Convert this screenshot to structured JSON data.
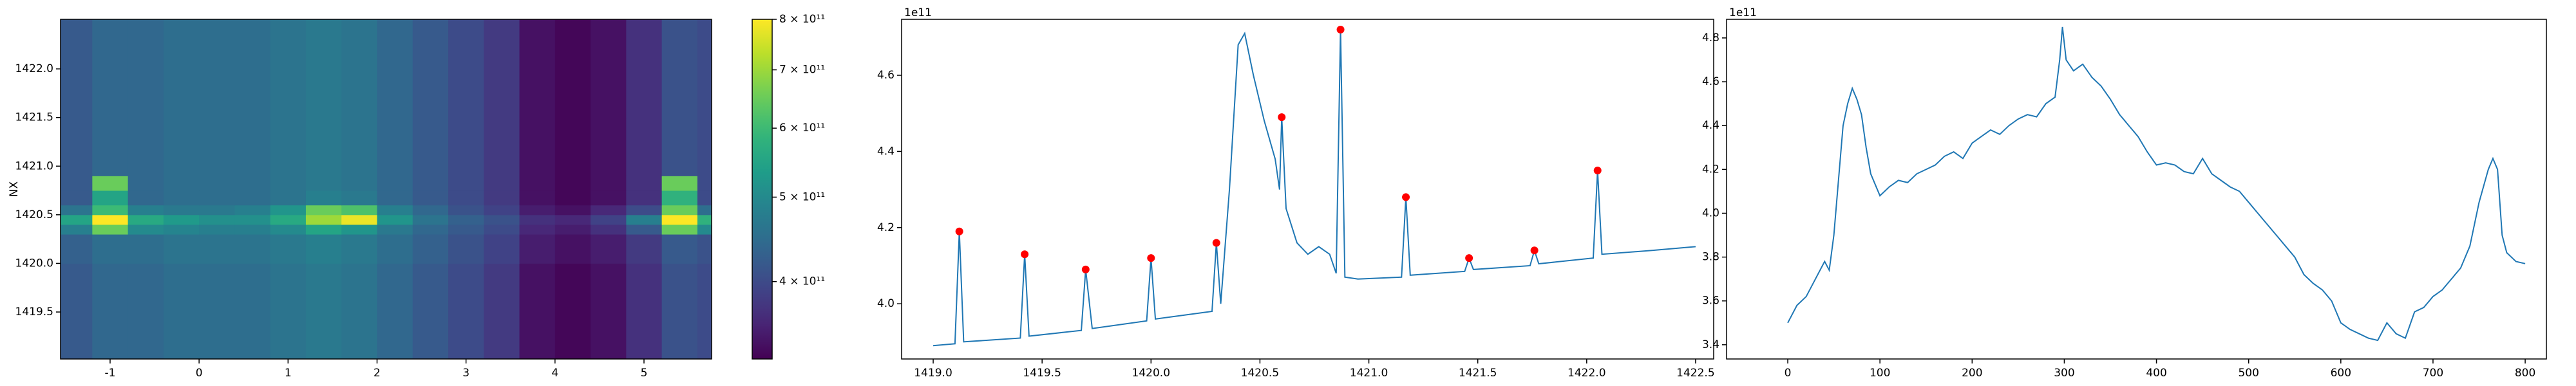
{
  "chart_data": [
    {
      "type": "heatmap",
      "ylabel": "NX",
      "colormap": "viridis",
      "xlim": [
        -1.557,
        5.76
      ],
      "ylim": [
        1419.017,
        1422.51
      ],
      "xticks": [
        -1,
        0,
        1,
        2,
        3,
        4,
        5
      ],
      "yticks": [
        1419.5,
        {
          "value": 1420.0,
          "label": "1420.0"
        },
        1420.5,
        {
          "value": 1421.0,
          "label": "1421.0"
        },
        1421.5,
        {
          "value": 1422.0,
          "label": "1422.0"
        }
      ],
      "xbins": [
        -1.557,
        -1.2,
        -0.8,
        -0.4,
        0,
        0.4,
        0.8,
        1.2,
        1.6,
        2.0,
        2.4,
        2.8,
        3.2,
        3.6,
        4.0,
        4.4,
        4.8,
        5.2,
        5.6,
        5.76
      ],
      "ybins": [
        1419.017,
        1420.0,
        1420.3,
        1420.4,
        1420.5,
        1420.6,
        1420.75,
        1420.9,
        1421.5,
        1422.51
      ],
      "z": [
        [
          420000000000.0,
          440000000000.0,
          440000000000.0,
          450000000000.0,
          450000000000.0,
          450000000000.0,
          460000000000.0,
          470000000000.0,
          460000000000.0,
          440000000000.0,
          420000000000.0,
          400000000000.0,
          380000000000.0,
          340000000000.0,
          330000000000.0,
          340000000000.0,
          370000000000.0,
          410000000000.0,
          400000000000.0
        ],
        [
          430000000000.0,
          450000000000.0,
          450000000000.0,
          460000000000.0,
          460000000000.0,
          460000000000.0,
          470000000000.0,
          480000000000.0,
          470000000000.0,
          450000000000.0,
          430000000000.0,
          410000000000.0,
          390000000000.0,
          350000000000.0,
          340000000000.0,
          350000000000.0,
          380000000000.0,
          420000000000.0,
          410000000000.0
        ],
        [
          480000000000.0,
          650000000000.0,
          500000000000.0,
          490000000000.0,
          480000000000.0,
          480000000000.0,
          500000000000.0,
          550000000000.0,
          520000000000.0,
          470000000000.0,
          440000000000.0,
          420000000000.0,
          400000000000.0,
          360000000000.0,
          350000000000.0,
          370000000000.0,
          420000000000.0,
          650000000000.0,
          500000000000.0
        ],
        [
          550000000000.0,
          800000000000.0,
          560000000000.0,
          530000000000.0,
          510000000000.0,
          510000000000.0,
          560000000000.0,
          700000000000.0,
          780000000000.0,
          520000000000.0,
          460000000000.0,
          430000000000.0,
          410000000000.0,
          370000000000.0,
          360000000000.0,
          390000000000.0,
          480000000000.0,
          800000000000.0,
          580000000000.0
        ],
        [
          460000000000.0,
          600000000000.0,
          480000000000.0,
          470000000000.0,
          470000000000.0,
          480000000000.0,
          520000000000.0,
          650000000000.0,
          620000000000.0,
          480000000000.0,
          440000000000.0,
          410000000000.0,
          390000000000.0,
          350000000000.0,
          340000000000.0,
          360000000000.0,
          400000000000.0,
          650000000000.0,
          450000000000.0
        ],
        [
          420000000000.0,
          550000000000.0,
          440000000000.0,
          450000000000.0,
          450000000000.0,
          450000000000.0,
          460000000000.0,
          480000000000.0,
          470000000000.0,
          440000000000.0,
          420000000000.0,
          400000000000.0,
          380000000000.0,
          340000000000.0,
          330000000000.0,
          340000000000.0,
          370000000000.0,
          580000000000.0,
          400000000000.0
        ],
        [
          420000000000.0,
          650000000000.0,
          440000000000.0,
          450000000000.0,
          450000000000.0,
          450000000000.0,
          460000000000.0,
          470000000000.0,
          460000000000.0,
          440000000000.0,
          420000000000.0,
          400000000000.0,
          380000000000.0,
          340000000000.0,
          330000000000.0,
          340000000000.0,
          370000000000.0,
          650000000000.0,
          400000000000.0
        ],
        [
          420000000000.0,
          440000000000.0,
          440000000000.0,
          450000000000.0,
          450000000000.0,
          450000000000.0,
          460000000000.0,
          470000000000.0,
          460000000000.0,
          440000000000.0,
          420000000000.0,
          400000000000.0,
          380000000000.0,
          340000000000.0,
          330000000000.0,
          340000000000.0,
          370000000000.0,
          410000000000.0,
          400000000000.0
        ],
        [
          420000000000.0,
          440000000000.0,
          440000000000.0,
          450000000000.0,
          450000000000.0,
          450000000000.0,
          460000000000.0,
          470000000000.0,
          460000000000.0,
          440000000000.0,
          420000000000.0,
          400000000000.0,
          380000000000.0,
          340000000000.0,
          330000000000.0,
          340000000000.0,
          370000000000.0,
          410000000000.0,
          400000000000.0
        ]
      ],
      "clim": [
        326000000000.0,
        800000000000.0
      ],
      "color_log": true,
      "cticks": [
        {
          "value": 400000000000.0,
          "label": "4 × 10¹¹"
        },
        {
          "value": 500000000000.0,
          "label": "5 × 10¹¹"
        },
        {
          "value": 600000000000.0,
          "label": "6 × 10¹¹"
        },
        {
          "value": 700000000000.0,
          "label": "7 × 10¹¹"
        },
        {
          "value": 800000000000.0,
          "label": "8 × 10¹¹"
        }
      ]
    },
    {
      "type": "line",
      "y_offset_label": "1e11",
      "xlim": [
        1418.855,
        1422.583
      ],
      "ylim": [
        3.855,
        4.747
      ],
      "xticks": [
        {
          "value": 1419.0,
          "label": "1419.0"
        },
        1419.5,
        {
          "value": 1420.0,
          "label": "1420.0"
        },
        1420.5,
        {
          "value": 1421.0,
          "label": "1421.0"
        },
        1421.5,
        {
          "value": 1422.0,
          "label": "1422.0"
        },
        1422.5
      ],
      "yticks": [
        {
          "value": 4.0,
          "label": "4.0"
        },
        4.2,
        4.4,
        4.6
      ],
      "x": [
        1419.0,
        1419.1,
        1419.12,
        1419.14,
        1419.4,
        1419.42,
        1419.44,
        1419.68,
        1419.7,
        1419.73,
        1419.98,
        1420.0,
        1420.02,
        1420.28,
        1420.3,
        1420.32,
        1420.36,
        1420.4,
        1420.43,
        1420.47,
        1420.52,
        1420.57,
        1420.59,
        1420.6,
        1420.62,
        1420.67,
        1420.72,
        1420.77,
        1420.82,
        1420.85,
        1420.87,
        1420.89,
        1420.95,
        1421.15,
        1421.17,
        1421.19,
        1421.44,
        1421.46,
        1421.48,
        1421.74,
        1421.76,
        1421.78,
        1422.03,
        1422.05,
        1422.07,
        1422.3,
        1422.5
      ],
      "series": [
        {
          "color": "#1f77b4",
          "values": [
            3.89,
            3.895,
            4.19,
            3.9,
            3.91,
            4.13,
            3.915,
            3.93,
            4.09,
            3.935,
            3.955,
            4.12,
            3.96,
            3.98,
            4.16,
            4.0,
            4.3,
            4.68,
            4.71,
            4.6,
            4.48,
            4.38,
            4.3,
            4.49,
            4.25,
            4.16,
            4.13,
            4.15,
            4.13,
            4.08,
            4.72,
            4.07,
            4.065,
            4.07,
            4.28,
            4.075,
            4.085,
            4.12,
            4.09,
            4.1,
            4.14,
            4.105,
            4.12,
            4.35,
            4.13,
            4.14,
            4.15
          ]
        }
      ],
      "peaks": {
        "color": "#ff0000",
        "x": [
          1419.12,
          1419.42,
          1419.7,
          1420.0,
          1420.3,
          1420.6,
          1420.87,
          1421.17,
          1421.46,
          1421.76,
          1422.05
        ],
        "values": [
          4.19,
          4.13,
          4.09,
          4.12,
          4.16,
          4.49,
          4.72,
          4.28,
          4.12,
          4.14,
          4.35
        ]
      }
    },
    {
      "type": "line",
      "y_offset_label": "1e11",
      "xlim": [
        -66.4,
        823
      ],
      "ylim": [
        3.335,
        4.885
      ],
      "xticks": [
        0,
        100,
        200,
        300,
        400,
        500,
        600,
        700,
        800
      ],
      "yticks": [
        {
          "value": 3.4,
          "label": "3.4"
        },
        {
          "value": 3.6,
          "label": "3.6"
        },
        {
          "value": 3.8,
          "label": "3.8"
        },
        {
          "value": 4.0,
          "label": "4.0"
        },
        {
          "value": 4.2,
          "label": "4.2"
        },
        {
          "value": 4.4,
          "label": "4.4"
        },
        {
          "value": 4.6,
          "label": "4.6"
        },
        {
          "value": 4.8,
          "label": "4.8"
        }
      ],
      "x": [
        0,
        10,
        20,
        30,
        40,
        45,
        50,
        55,
        60,
        65,
        70,
        75,
        80,
        85,
        90,
        100,
        110,
        120,
        130,
        140,
        150,
        160,
        170,
        180,
        190,
        200,
        210,
        220,
        230,
        240,
        250,
        260,
        270,
        280,
        290,
        295,
        298,
        302,
        310,
        320,
        330,
        340,
        350,
        360,
        370,
        380,
        390,
        400,
        410,
        420,
        430,
        440,
        450,
        460,
        470,
        480,
        490,
        500,
        510,
        520,
        530,
        540,
        550,
        560,
        570,
        580,
        590,
        600,
        610,
        620,
        630,
        640,
        650,
        660,
        670,
        680,
        690,
        700,
        710,
        720,
        730,
        740,
        750,
        760,
        765,
        770,
        775,
        780,
        790,
        800
      ],
      "series": [
        {
          "color": "#1f77b4",
          "values": [
            3.5,
            3.58,
            3.62,
            3.7,
            3.78,
            3.74,
            3.9,
            4.15,
            4.4,
            4.5,
            4.57,
            4.52,
            4.45,
            4.3,
            4.18,
            4.08,
            4.12,
            4.15,
            4.14,
            4.18,
            4.2,
            4.22,
            4.26,
            4.28,
            4.25,
            4.32,
            4.35,
            4.38,
            4.36,
            4.4,
            4.43,
            4.45,
            4.44,
            4.5,
            4.53,
            4.7,
            4.85,
            4.7,
            4.65,
            4.68,
            4.62,
            4.58,
            4.52,
            4.45,
            4.4,
            4.35,
            4.28,
            4.22,
            4.23,
            4.22,
            4.19,
            4.18,
            4.25,
            4.18,
            4.15,
            4.12,
            4.1,
            4.05,
            4.0,
            3.95,
            3.9,
            3.85,
            3.8,
            3.72,
            3.68,
            3.65,
            3.6,
            3.5,
            3.47,
            3.45,
            3.43,
            3.42,
            3.5,
            3.45,
            3.43,
            3.55,
            3.57,
            3.62,
            3.65,
            3.7,
            3.75,
            3.85,
            4.05,
            4.2,
            4.25,
            4.2,
            3.9,
            3.82,
            3.78,
            3.77
          ]
        }
      ]
    }
  ]
}
